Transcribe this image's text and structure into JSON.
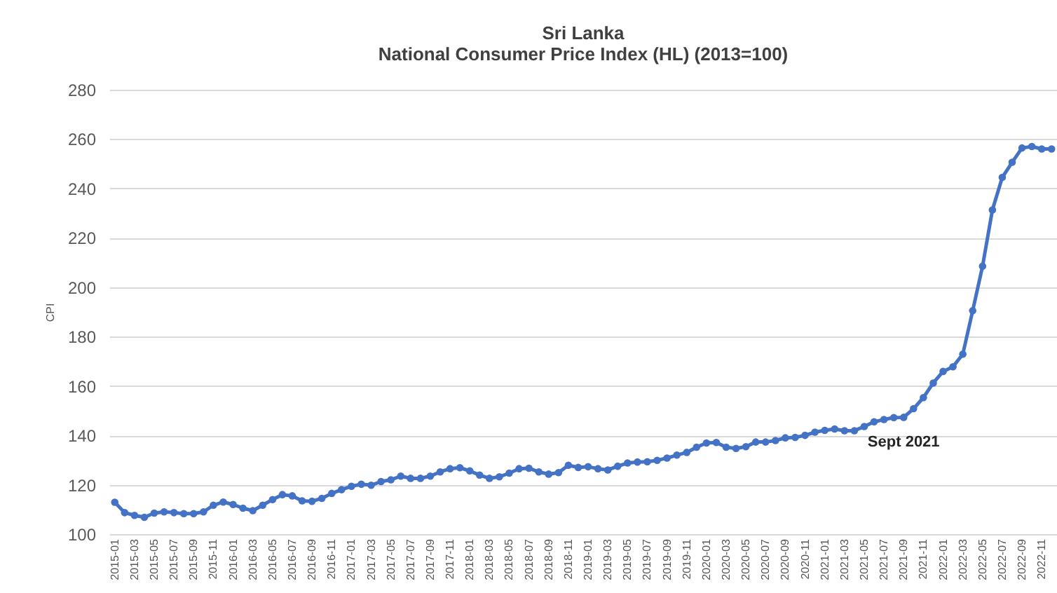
{
  "chart_data": {
    "type": "line",
    "title": "Sri Lanka",
    "subtitle": "National Consumer Price Index (HL) (2013=100)",
    "ylabel": "CPI",
    "categories": [
      "2015-01",
      null,
      "2015-03",
      null,
      "2015-05",
      null,
      "2015-07",
      null,
      "2015-09",
      null,
      "2015-11",
      null,
      "2016-01",
      null,
      "2016-03",
      null,
      "2016-05",
      null,
      "2016-07",
      null,
      "2016-09",
      null,
      "2016-11",
      null,
      "2017-01",
      null,
      "2017-03",
      null,
      "2017-05",
      null,
      "2017-07",
      null,
      "2017-09",
      null,
      "2017-11",
      null,
      "2018-01",
      null,
      "2018-03",
      null,
      "2018-05",
      null,
      "2018-07",
      null,
      "2018-09",
      null,
      "2018-11",
      null,
      "2019-01",
      null,
      "2019-03",
      null,
      "2019-05",
      null,
      "2019-07",
      null,
      "2019-09",
      null,
      "2019-11",
      null,
      "2020-01",
      null,
      "2020-03",
      null,
      "2020-05",
      null,
      "2020-07",
      null,
      "2020-09",
      null,
      "2020-11",
      null,
      "2021-01",
      null,
      "2021-03",
      null,
      "2021-05",
      null,
      "2021-07",
      null,
      "2021-09",
      null,
      "2021-11",
      null,
      "2022-01",
      null,
      "2022-03",
      null,
      "2022-05",
      null,
      "2022-07",
      null,
      "2022-09",
      null,
      "2022-11",
      null
    ],
    "series": [
      {
        "color": "#4472c4",
        "values": [
          112.9,
          108.7,
          107.6,
          106.8,
          108.5,
          109,
          108.7,
          108.3,
          108.3,
          109,
          111.7,
          113,
          112,
          110.5,
          109.5,
          111.7,
          114,
          116,
          115.5,
          113.5,
          113.3,
          114.5,
          116.5,
          118,
          119.4,
          120.2,
          119.8,
          121.3,
          122,
          123.5,
          122.6,
          122.6,
          123.5,
          125.2,
          126.5,
          126.9,
          125.6,
          123.9,
          122.6,
          123.2,
          124.7,
          126.5,
          126.7,
          125.2,
          124.3,
          124.9,
          127.9,
          127,
          127.3,
          126.5,
          126,
          127.5,
          128.8,
          129.2,
          129.3,
          129.9,
          130.8,
          132,
          133.1,
          135.2,
          136.9,
          137.1,
          135.2,
          134.7,
          135.4,
          137.3,
          137.3,
          137.9,
          139,
          139.2,
          140,
          141.3,
          142,
          142.6,
          141.9,
          141.9,
          143.6,
          145.5,
          146.4,
          147.2,
          147.3,
          150.8,
          155.3,
          161.2,
          165.9,
          167.8,
          172.9,
          190.5,
          208.5,
          231.3,
          244.5,
          250.6,
          256.4,
          257,
          256,
          256
        ]
      }
    ],
    "ylim": [
      100,
      280
    ],
    "yticks": [
      100,
      120,
      140,
      160,
      180,
      200,
      220,
      240,
      260,
      280
    ],
    "grid": "y",
    "marker": "circle",
    "line_style": "solid",
    "annotations": [
      {
        "text": "Sept 2021",
        "x": "2021-09",
        "y": 147.3
      }
    ]
  }
}
